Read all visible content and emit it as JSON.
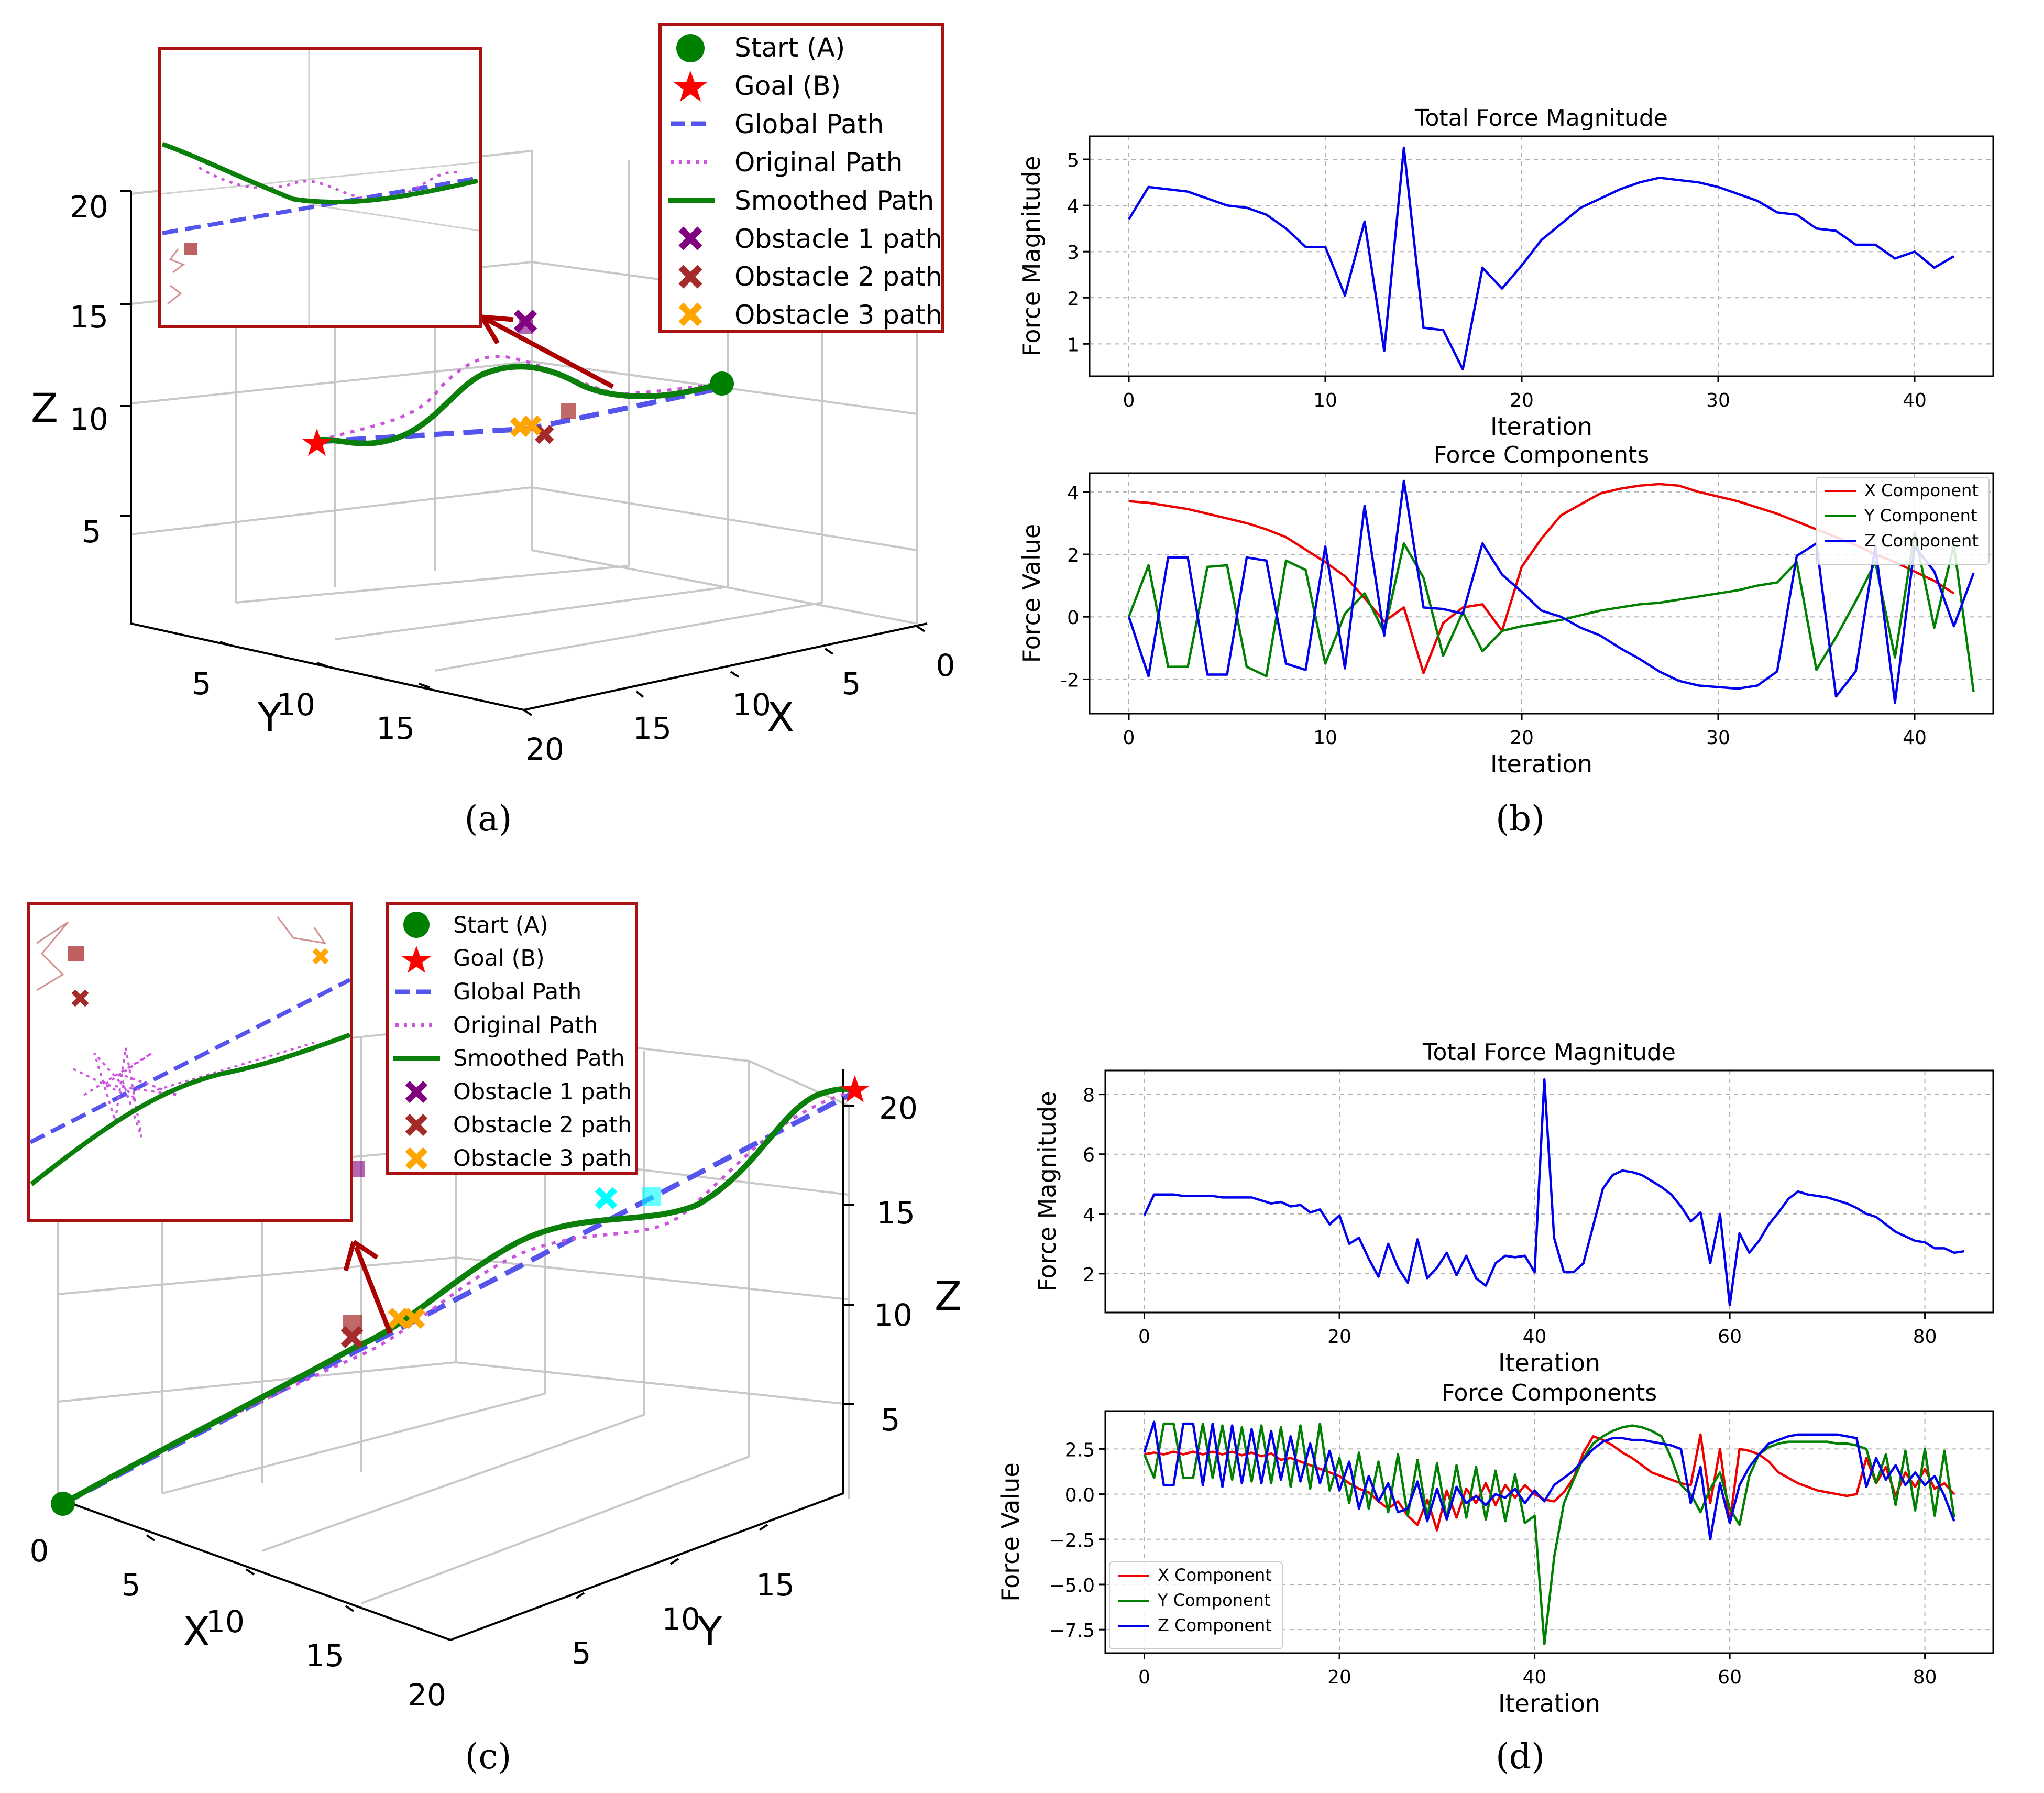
{
  "panels": {
    "a": {
      "caption": "(a)",
      "chart_data": {
        "type": "line3d",
        "axes": {
          "x": {
            "label": "X",
            "ticks": [
              "0",
              "5",
              "10",
              "15"
            ]
          },
          "y": {
            "label": "Y",
            "ticks": [
              "5",
              "10",
              "15",
              "20"
            ]
          },
          "z": {
            "label": "Z",
            "ticks": [
              "5",
              "10",
              "15",
              "20"
            ]
          }
        },
        "legend": [
          "Start (A)",
          "Goal (B)",
          "Global Path",
          "Original Path",
          "Smoothed Path",
          "Obstacle 1 path",
          "Obstacle 2 path",
          "Obstacle 3 path"
        ],
        "colors": {
          "start": "#008000",
          "goal": "#ff0000",
          "global": "#5555ee",
          "original": "#cc55dd",
          "smoothed": "#0a800a",
          "obs1": "#800080",
          "obs2": "#a52a2a",
          "obs3": "#ffa500"
        }
      }
    },
    "b": {
      "caption": "(b)",
      "magnitude": {
        "chart_data": {
          "type": "line",
          "title": "Total Force Magnitude",
          "xlabel": "Iteration",
          "ylabel": "Force Magnitude",
          "xlim": [
            -2,
            44
          ],
          "ylim": [
            0.3,
            5.5
          ],
          "xticks": [
            0,
            10,
            20,
            30,
            40
          ],
          "yticks": [
            1,
            2,
            3,
            4,
            5
          ],
          "grid": true,
          "series": [
            {
              "values": [
                3.7,
                4.4,
                4.35,
                4.3,
                4.15,
                4.0,
                3.95,
                3.8,
                3.5,
                3.1,
                3.1,
                2.05,
                3.65,
                0.85,
                5.25,
                1.35,
                1.3,
                0.45,
                2.65,
                2.2,
                2.7,
                3.25,
                3.6,
                3.95,
                4.15,
                4.35,
                4.5,
                4.6,
                4.55,
                4.5,
                4.4,
                4.25,
                4.1,
                3.85,
                3.8,
                3.5,
                3.45,
                3.15,
                3.15,
                2.85,
                3.0,
                2.65,
                2.9
              ],
              "color": "#0000ee"
            }
          ]
        }
      },
      "components": {
        "chart_data": {
          "type": "line",
          "title": "Force Components",
          "xlabel": "Iteration",
          "ylabel": "Force Value",
          "xlim": [
            -2,
            44
          ],
          "ylim": [
            -3.1,
            4.6
          ],
          "xticks": [
            0,
            10,
            20,
            30,
            40
          ],
          "yticks": [
            -2,
            0,
            2,
            4
          ],
          "grid": true,
          "legend_position": "top-right",
          "series": [
            {
              "name": "X Component",
              "color": "#ee0000",
              "values": [
                3.7,
                3.65,
                3.55,
                3.45,
                3.3,
                3.15,
                3.0,
                2.8,
                2.55,
                2.15,
                1.75,
                1.3,
                0.6,
                -0.15,
                0.3,
                -1.8,
                -0.2,
                0.3,
                0.4,
                -0.45,
                1.6,
                2.5,
                3.25,
                3.6,
                3.95,
                4.1,
                4.2,
                4.25,
                4.2,
                4.0,
                3.85,
                3.7,
                3.5,
                3.3,
                3.05,
                2.8,
                2.55,
                2.3,
                2.0,
                1.75,
                1.45,
                1.15,
                0.75
              ]
            },
            {
              "name": "Y Component",
              "color": "#008000",
              "values": [
                0.0,
                1.65,
                -1.6,
                -1.6,
                1.6,
                1.65,
                -1.6,
                -1.9,
                1.8,
                1.5,
                -1.5,
                0.1,
                0.75,
                -0.5,
                2.35,
                1.25,
                -1.25,
                0.15,
                -1.1,
                -0.45,
                -0.3,
                -0.2,
                -0.1,
                0.05,
                0.2,
                0.3,
                0.4,
                0.45,
                0.55,
                0.65,
                0.75,
                0.85,
                1.0,
                1.1,
                1.75,
                -1.7,
                -0.65,
                0.5,
                1.75,
                -1.3,
                2.7,
                -0.35,
                2.3,
                -2.4
              ]
            },
            {
              "name": "Z Component",
              "color": "#0000ee",
              "values": [
                0.0,
                -1.9,
                1.9,
                1.9,
                -1.85,
                -1.85,
                1.9,
                1.8,
                -1.5,
                -1.7,
                2.25,
                -1.65,
                3.55,
                -0.6,
                4.35,
                0.3,
                0.25,
                0.1,
                2.35,
                1.35,
                0.8,
                0.2,
                0.0,
                -0.35,
                -0.6,
                -1.0,
                -1.35,
                -1.75,
                -2.05,
                -2.2,
                -2.25,
                -2.3,
                -2.2,
                -1.75,
                1.95,
                2.35,
                -2.55,
                -1.75,
                2.25,
                -2.75,
                2.25,
                1.45,
                -0.3,
                1.4
              ]
            }
          ]
        }
      }
    },
    "c": {
      "caption": "(c)",
      "chart_data": {
        "type": "line3d",
        "axes": {
          "x": {
            "label": "X",
            "ticks": [
              "0",
              "5",
              "10",
              "15",
              "20"
            ]
          },
          "y": {
            "label": "Y",
            "ticks": [
              "5",
              "10",
              "15"
            ]
          },
          "z": {
            "label": "Z",
            "ticks": [
              "5",
              "10",
              "15",
              "20"
            ]
          }
        },
        "legend": [
          "Start (A)",
          "Goal (B)",
          "Global Path",
          "Original Path",
          "Smoothed Path",
          "Obstacle 1 path",
          "Obstacle 2 path",
          "Obstacle 3 path"
        ]
      }
    },
    "d": {
      "caption": "(d)",
      "magnitude": {
        "chart_data": {
          "type": "line",
          "title": "Total Force Magnitude",
          "xlabel": "Iteration",
          "ylabel": "Force Magnitude",
          "xlim": [
            -4,
            87
          ],
          "ylim": [
            0.7,
            8.8
          ],
          "xticks": [
            0,
            20,
            40,
            60,
            80
          ],
          "yticks": [
            2,
            4,
            6,
            8
          ],
          "grid": true,
          "series": [
            {
              "color": "#0000ee",
              "values": [
                3.95,
                4.65,
                4.65,
                4.65,
                4.6,
                4.6,
                4.6,
                4.6,
                4.55,
                4.55,
                4.55,
                4.55,
                4.45,
                4.35,
                4.4,
                4.25,
                4.3,
                4.05,
                4.15,
                3.65,
                3.95,
                3.0,
                3.2,
                2.5,
                1.9,
                3.0,
                2.2,
                1.7,
                3.15,
                1.85,
                2.2,
                2.7,
                1.95,
                2.6,
                1.85,
                1.6,
                2.35,
                2.6,
                2.55,
                2.6,
                2.05,
                8.5,
                3.2,
                2.05,
                2.05,
                2.35,
                3.6,
                4.85,
                5.3,
                5.45,
                5.4,
                5.3,
                5.1,
                4.9,
                4.65,
                4.25,
                3.75,
                4.05,
                2.35,
                4.0,
                0.95,
                3.35,
                2.7,
                3.1,
                3.65,
                4.05,
                4.5,
                4.75,
                4.65,
                4.6,
                4.55,
                4.45,
                4.35,
                4.2,
                4.0,
                3.9,
                3.65,
                3.4,
                3.25,
                3.1,
                3.05,
                2.85,
                2.85,
                2.7,
                2.75
              ]
            }
          ]
        }
      },
      "components": {
        "chart_data": {
          "type": "line",
          "title": "Force Components",
          "xlabel": "Iteration",
          "ylabel": "Force Value",
          "xlim": [
            -4,
            87
          ],
          "ylim": [
            -8.8,
            4.6
          ],
          "xticks": [
            0,
            20,
            40,
            60,
            80
          ],
          "yticks": [
            2.5,
            0.0,
            -2.5,
            -5.0,
            -7.5
          ],
          "ytick_labels": [
            "2.5",
            "0.0",
            "−2.5",
            "−5.0",
            "−7.5"
          ],
          "grid": true,
          "legend_position": "bottom-left",
          "series": [
            {
              "name": "X Component",
              "color": "#ee0000",
              "values": [
                2.2,
                2.3,
                2.2,
                2.35,
                2.2,
                2.35,
                2.2,
                2.35,
                2.2,
                2.35,
                2.15,
                2.3,
                2.1,
                2.25,
                1.9,
                2.0,
                1.8,
                1.6,
                1.4,
                1.2,
                1.0,
                0.6,
                0.3,
                0.1,
                -0.4,
                -0.8,
                -0.4,
                -1.2,
                -1.7,
                -0.3,
                -2.0,
                0.2,
                -1.3,
                0.3,
                -0.5,
                0.6,
                -0.6,
                0.5,
                -0.2,
                0.5,
                0.0,
                -0.3,
                -0.4,
                0.1,
                0.9,
                2.3,
                3.2,
                3.0,
                2.7,
                2.3,
                2.0,
                1.6,
                1.2,
                1.0,
                0.8,
                0.6,
                0.5,
                3.3,
                -0.5,
                2.5,
                -1.6,
                2.5,
                2.4,
                2.2,
                1.8,
                1.2,
                0.9,
                0.6,
                0.4,
                0.2,
                0.1,
                0.0,
                -0.1,
                0.0,
                2.0,
                0.6,
                1.5,
                -0.1,
                1.2,
                0.4,
                1.4,
                0.3,
                0.6,
                0.0
              ]
            },
            {
              "name": "Y Component",
              "color": "#008000",
              "values": [
                2.2,
                0.9,
                3.9,
                3.9,
                0.9,
                0.9,
                3.9,
                0.9,
                3.8,
                0.8,
                3.7,
                0.7,
                3.8,
                0.6,
                3.7,
                0.4,
                3.8,
                0.3,
                3.9,
                0.2,
                2.0,
                -0.5,
                2.3,
                -0.8,
                1.8,
                -1.0,
                2.2,
                -1.2,
                1.9,
                -1.3,
                1.7,
                -1.4,
                1.6,
                -1.3,
                1.5,
                -1.4,
                1.3,
                -1.5,
                1.1,
                -1.6,
                -1.2,
                -8.3,
                -3.5,
                -0.5,
                0.8,
                2.0,
                2.8,
                3.2,
                3.5,
                3.7,
                3.8,
                3.7,
                3.5,
                3.2,
                2.0,
                0.5,
                0.0,
                -1.0,
                0.3,
                1.2,
                -0.8,
                -1.7,
                1.0,
                2.2,
                2.6,
                2.8,
                2.9,
                2.9,
                2.9,
                2.9,
                2.9,
                2.8,
                2.8,
                2.7,
                2.5,
                0.6,
                2.2,
                -0.6,
                2.4,
                -0.9,
                2.5,
                -1.2,
                2.4,
                -1.3
              ]
            },
            {
              "name": "Z Component",
              "color": "#0000ee",
              "values": [
                2.3,
                4.0,
                0.5,
                0.5,
                3.9,
                3.9,
                0.5,
                3.9,
                0.4,
                3.8,
                0.6,
                3.6,
                0.6,
                3.5,
                0.8,
                3.2,
                0.7,
                2.8,
                0.6,
                2.4,
                0.2,
                1.8,
                -0.8,
                1.0,
                -0.4,
                0.6,
                -1.0,
                -0.8,
                0.7,
                -1.5,
                0.3,
                -1.4,
                0.4,
                -0.5,
                -0.1,
                -0.6,
                0.0,
                -0.2,
                0.3,
                -0.5,
                0.2,
                -0.4,
                0.5,
                0.9,
                1.3,
                1.9,
                2.5,
                2.9,
                3.1,
                3.1,
                3.0,
                3.0,
                2.9,
                2.8,
                2.7,
                2.5,
                -0.5,
                1.5,
                -2.5,
                0.6,
                -1.6,
                0.5,
                1.5,
                2.2,
                2.8,
                3.0,
                3.2,
                3.3,
                3.3,
                3.3,
                3.3,
                3.3,
                3.2,
                3.1,
                0.4,
                2.0,
                0.8,
                1.6,
                0.5,
                1.2,
                0.5,
                1.0,
                -0.1,
                -1.5
              ]
            }
          ]
        }
      }
    }
  }
}
